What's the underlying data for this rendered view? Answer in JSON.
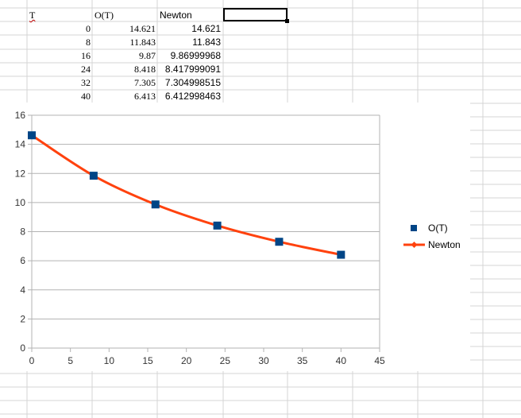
{
  "sheet": {
    "headers": [
      "T",
      "O(T)",
      "Newton"
    ],
    "rows": [
      [
        "0",
        "14.621",
        "14.621"
      ],
      [
        "8",
        "11.843",
        "11.843"
      ],
      [
        "16",
        "9.87",
        "9.86999968"
      ],
      [
        "24",
        "8.418",
        "8.417999091"
      ],
      [
        "32",
        "7.305",
        "7.304998515"
      ],
      [
        "40",
        "6.413",
        "6.412998463"
      ]
    ]
  },
  "chart_data": {
    "type": "line",
    "x": [
      0,
      8,
      16,
      24,
      32,
      40
    ],
    "series": [
      {
        "name": "O(T)",
        "style": "markers",
        "color": "#004586",
        "values": [
          14.621,
          11.843,
          9.87,
          8.418,
          7.305,
          6.413
        ]
      },
      {
        "name": "Newton",
        "style": "line",
        "color": "#ff420e",
        "values": [
          14.621,
          11.843,
          9.86999968,
          8.417999091,
          7.304998515,
          6.412998463
        ]
      }
    ],
    "xlim": [
      0,
      45
    ],
    "ylim": [
      0,
      16
    ],
    "x_ticks": [
      0,
      5,
      10,
      15,
      20,
      25,
      30,
      35,
      40,
      45
    ],
    "y_ticks": [
      0,
      2,
      4,
      6,
      8,
      10,
      12,
      14,
      16
    ],
    "grid": true,
    "legend_position": "right"
  }
}
